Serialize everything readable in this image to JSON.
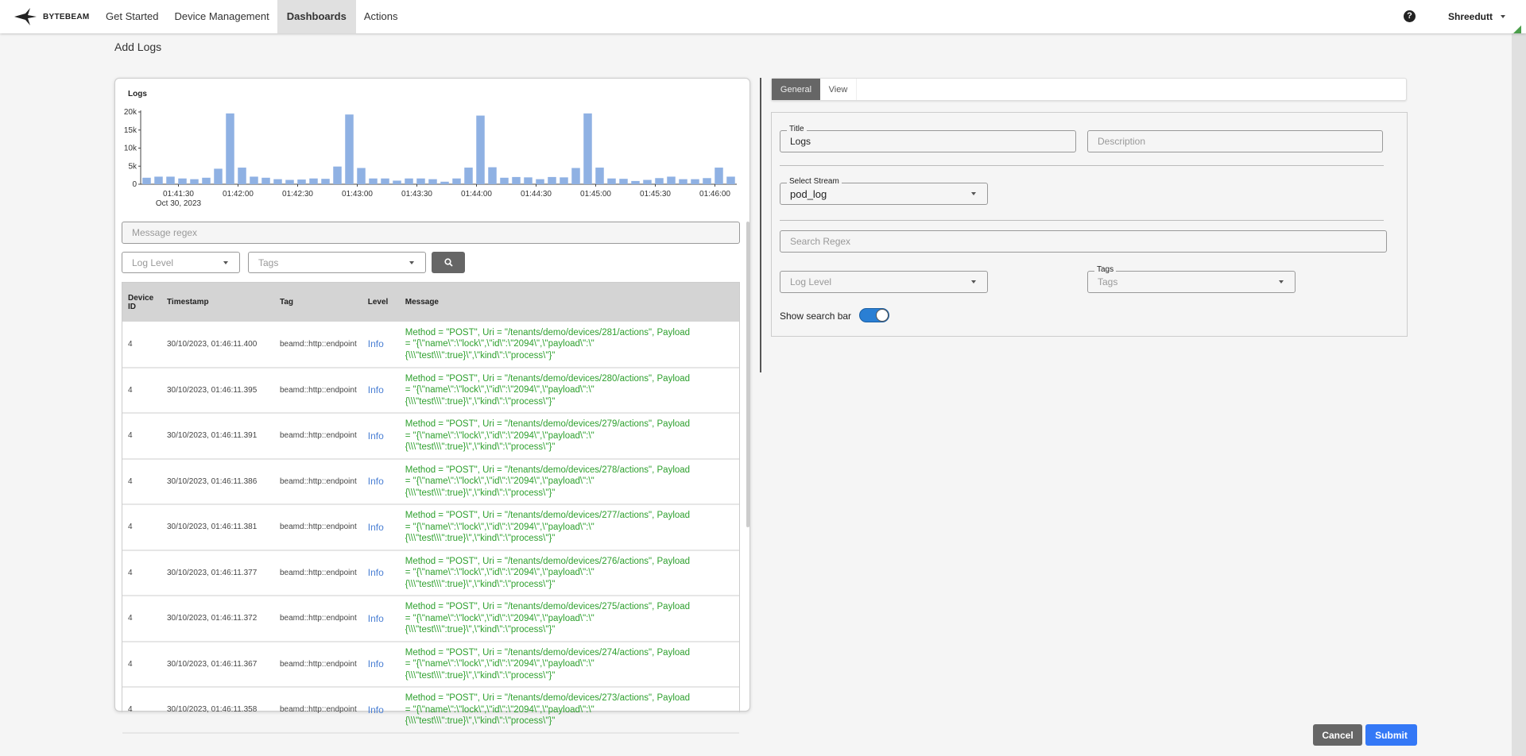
{
  "nav": {
    "brand": "BYTEBEAM",
    "items": [
      "Get Started",
      "Device Management",
      "Dashboards",
      "Actions"
    ],
    "active": "Dashboards",
    "user": "Shreedutt"
  },
  "page_title": "Add Logs",
  "preview": {
    "message_regex_placeholder": "Message regex",
    "log_level_placeholder": "Log Level",
    "tags_placeholder": "Tags",
    "columns": [
      "Device ID",
      "Timestamp",
      "Tag",
      "Level",
      "Message"
    ],
    "rows": [
      {
        "device": "4",
        "ts": "30/10/2023, 01:46:11.400",
        "tag": "beamd::http::endpoint",
        "level": "Info",
        "msg": "Method = \"POST\", Uri = \"/tenants/demo/devices/281/actions\", Payload = \"{\\\"name\\\":\\\"lock\\\",\\\"id\\\":\\\"2094\\\",\\\"payload\\\":\\\"{\\\\\\\"test\\\\\\\":true}\\\",\\\"kind\\\":\\\"process\\\"}\""
      },
      {
        "device": "4",
        "ts": "30/10/2023, 01:46:11.395",
        "tag": "beamd::http::endpoint",
        "level": "Info",
        "msg": "Method = \"POST\", Uri = \"/tenants/demo/devices/280/actions\", Payload = \"{\\\"name\\\":\\\"lock\\\",\\\"id\\\":\\\"2094\\\",\\\"payload\\\":\\\"{\\\\\\\"test\\\\\\\":true}\\\",\\\"kind\\\":\\\"process\\\"}\""
      },
      {
        "device": "4",
        "ts": "30/10/2023, 01:46:11.391",
        "tag": "beamd::http::endpoint",
        "level": "Info",
        "msg": "Method = \"POST\", Uri = \"/tenants/demo/devices/279/actions\", Payload = \"{\\\"name\\\":\\\"lock\\\",\\\"id\\\":\\\"2094\\\",\\\"payload\\\":\\\"{\\\\\\\"test\\\\\\\":true}\\\",\\\"kind\\\":\\\"process\\\"}\""
      },
      {
        "device": "4",
        "ts": "30/10/2023, 01:46:11.386",
        "tag": "beamd::http::endpoint",
        "level": "Info",
        "msg": "Method = \"POST\", Uri = \"/tenants/demo/devices/278/actions\", Payload = \"{\\\"name\\\":\\\"lock\\\",\\\"id\\\":\\\"2094\\\",\\\"payload\\\":\\\"{\\\\\\\"test\\\\\\\":true}\\\",\\\"kind\\\":\\\"process\\\"}\""
      },
      {
        "device": "4",
        "ts": "30/10/2023, 01:46:11.381",
        "tag": "beamd::http::endpoint",
        "level": "Info",
        "msg": "Method = \"POST\", Uri = \"/tenants/demo/devices/277/actions\", Payload = \"{\\\"name\\\":\\\"lock\\\",\\\"id\\\":\\\"2094\\\",\\\"payload\\\":\\\"{\\\\\\\"test\\\\\\\":true}\\\",\\\"kind\\\":\\\"process\\\"}\""
      },
      {
        "device": "4",
        "ts": "30/10/2023, 01:46:11.377",
        "tag": "beamd::http::endpoint",
        "level": "Info",
        "msg": "Method = \"POST\", Uri = \"/tenants/demo/devices/276/actions\", Payload = \"{\\\"name\\\":\\\"lock\\\",\\\"id\\\":\\\"2094\\\",\\\"payload\\\":\\\"{\\\\\\\"test\\\\\\\":true}\\\",\\\"kind\\\":\\\"process\\\"}\""
      },
      {
        "device": "4",
        "ts": "30/10/2023, 01:46:11.372",
        "tag": "beamd::http::endpoint",
        "level": "Info",
        "msg": "Method = \"POST\", Uri = \"/tenants/demo/devices/275/actions\", Payload = \"{\\\"name\\\":\\\"lock\\\",\\\"id\\\":\\\"2094\\\",\\\"payload\\\":\\\"{\\\\\\\"test\\\\\\\":true}\\\",\\\"kind\\\":\\\"process\\\"}\""
      },
      {
        "device": "4",
        "ts": "30/10/2023, 01:46:11.367",
        "tag": "beamd::http::endpoint",
        "level": "Info",
        "msg": "Method = \"POST\", Uri = \"/tenants/demo/devices/274/actions\", Payload = \"{\\\"name\\\":\\\"lock\\\",\\\"id\\\":\\\"2094\\\",\\\"payload\\\":\\\"{\\\\\\\"test\\\\\\\":true}\\\",\\\"kind\\\":\\\"process\\\"}\""
      },
      {
        "device": "4",
        "ts": "30/10/2023, 01:46:11.358",
        "tag": "beamd::http::endpoint",
        "level": "Info",
        "msg": "Method = \"POST\", Uri = \"/tenants/demo/devices/273/actions\", Payload = \"{\\\"name\\\":\\\"lock\\\",\\\"id\\\":\\\"2094\\\",\\\"payload\\\":\\\"{\\\\\\\"test\\\\\\\":true}\\\",\\\"kind\\\":\\\"process\\\"}\""
      }
    ]
  },
  "chart_data": {
    "type": "bar",
    "title": "Logs",
    "color": "#8fb1e3",
    "x_start": "01:41:14",
    "bin_seconds": 6,
    "values": [
      1800,
      2100,
      2100,
      1600,
      1400,
      1800,
      4300,
      19600,
      4600,
      2100,
      1800,
      1400,
      1200,
      1300,
      1600,
      1500,
      4900,
      19300,
      4500,
      1600,
      1600,
      1000,
      1600,
      1600,
      1400,
      700,
      1600,
      4600,
      19000,
      4700,
      1800,
      2000,
      1900,
      1400,
      2000,
      1900,
      4500,
      19600,
      4600,
      1600,
      1500,
      900,
      1200,
      1700,
      2100,
      1400,
      1400,
      1700,
      4600,
      2100
    ],
    "yticks": [
      {
        "v": 0,
        "label": "0"
      },
      {
        "v": 5000,
        "label": "5k"
      },
      {
        "v": 10000,
        "label": "10k"
      },
      {
        "v": 15000,
        "label": "15k"
      },
      {
        "v": 20000,
        "label": "20k"
      }
    ],
    "xticks": [
      "01:41:30",
      "01:42:00",
      "01:42:30",
      "01:43:00",
      "01:43:30",
      "01:44:00",
      "01:44:30",
      "01:45:00",
      "01:45:30",
      "01:46:00"
    ],
    "x_sub_label": "Oct 30, 2023",
    "ylim": [
      0,
      20000
    ]
  },
  "form": {
    "tabs": [
      "General",
      "View"
    ],
    "active_tab": "General",
    "title_label": "Title",
    "title_value": "Logs",
    "description_placeholder": "Description",
    "stream_label": "Select Stream",
    "stream_value": "pod_log",
    "search_regex_placeholder": "Search Regex",
    "log_level_placeholder": "Log Level",
    "tags_label": "Tags",
    "tags_placeholder": "Tags",
    "show_search_bar_label": "Show search bar",
    "show_search_bar": true
  },
  "footer": {
    "cancel": "Cancel",
    "submit": "Submit"
  },
  "colors": {
    "accent": "#3478f6",
    "toggle": "#2a7fd4",
    "message": "#2ea02e",
    "level": "#4a7fd4"
  }
}
